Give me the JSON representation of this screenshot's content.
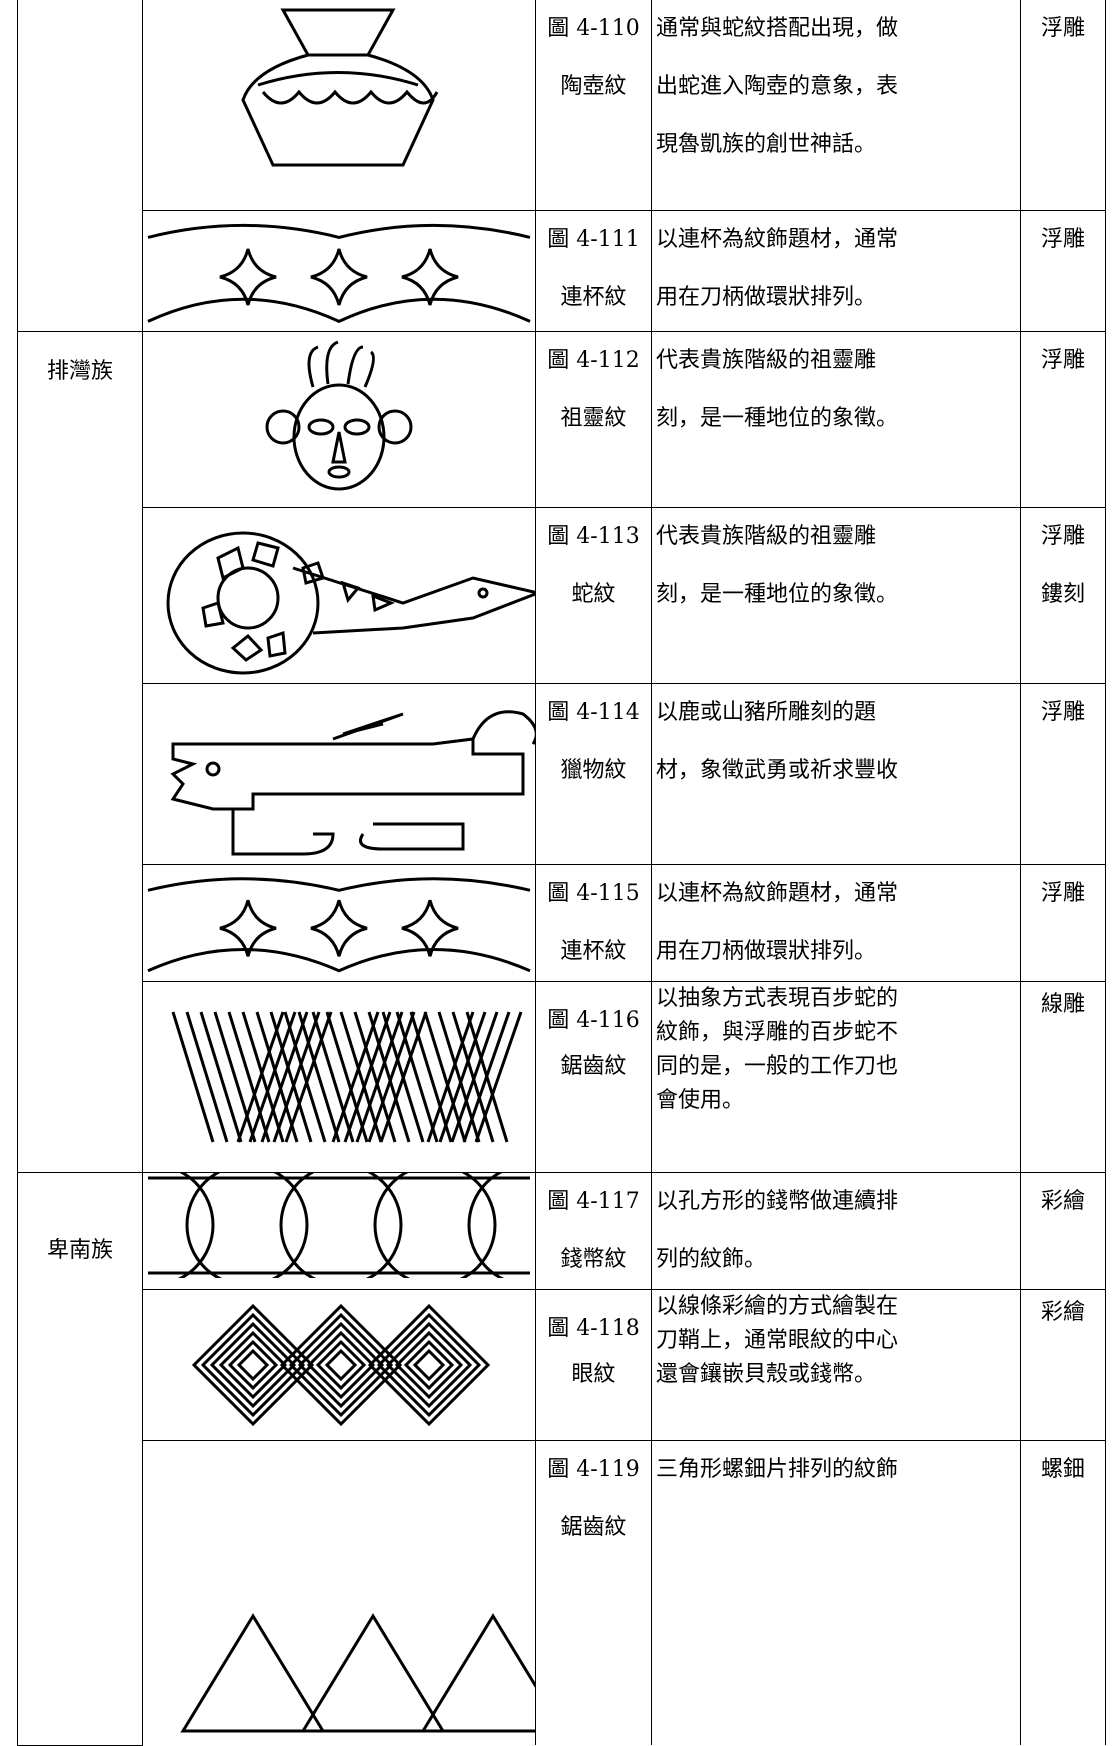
{
  "groups": [
    {
      "label": "排灣族"
    },
    {
      "label": "卑南族"
    }
  ],
  "rows": [
    {
      "figure": "圖 4-110",
      "name": "陶壺紋",
      "description": [
        "通常與蛇紋搭配出現，做",
        "出蛇進入陶壺的意象，表",
        "現魯凱族的創世神話。"
      ],
      "technique": [
        "浮雕"
      ]
    },
    {
      "figure": "圖 4-111",
      "name": "連杯紋",
      "description": [
        "以連杯為紋飾題材，通常",
        "用在刀柄做環狀排列。"
      ],
      "technique": [
        "浮雕"
      ]
    },
    {
      "figure": "圖 4-112",
      "name": "祖靈紋",
      "description": [
        "代表貴族階級的祖靈雕",
        "刻，是一種地位的象徵。"
      ],
      "technique": [
        "浮雕"
      ]
    },
    {
      "figure": "圖 4-113",
      "name": "蛇紋",
      "description": [
        "代表貴族階級的祖靈雕",
        "刻，是一種地位的象徵。"
      ],
      "technique": [
        "浮雕",
        "鏤刻"
      ]
    },
    {
      "figure": "圖 4-114",
      "name": "獵物紋",
      "description": [
        "以鹿或山豬所雕刻的題",
        "材，象徵武勇或祈求豐收"
      ],
      "technique": [
        "浮雕"
      ]
    },
    {
      "figure": "圖 4-115",
      "name": "連杯紋",
      "description": [
        "以連杯為紋飾題材，通常",
        "用在刀柄做環狀排列。"
      ],
      "technique": [
        "浮雕"
      ]
    },
    {
      "figure": "圖 4-116",
      "name": "鋸齒紋",
      "description": [
        "以抽象方式表現百步蛇的",
        "紋飾，與浮雕的百步蛇不",
        "同的是，一般的工作刀也",
        "會使用。"
      ],
      "technique": [
        "線雕"
      ]
    },
    {
      "figure": "圖 4-117",
      "name": "錢幣紋",
      "description": [
        "以孔方形的錢幣做連續排",
        "列的紋飾。"
      ],
      "technique": [
        "彩繪"
      ]
    },
    {
      "figure": "圖 4-118",
      "name": "眼紋",
      "description": [
        "以線條彩繪的方式繪製在",
        "刀鞘上，通常眼紋的中心",
        "還會鑲嵌貝殼或錢幣。"
      ],
      "technique": [
        "彩繪"
      ]
    },
    {
      "figure": "圖 4-119",
      "name": "鋸齒紋",
      "description": [
        "三角形螺鈿片排列的紋飾"
      ],
      "technique": [
        "螺鈿"
      ]
    }
  ]
}
